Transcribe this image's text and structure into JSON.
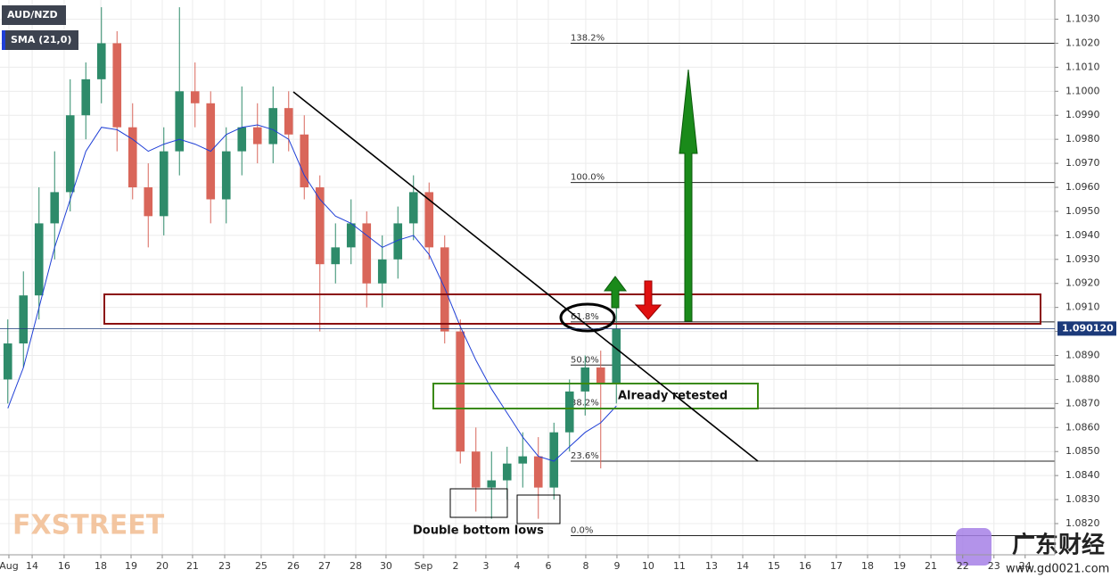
{
  "chart_data": {
    "type": "candlestick",
    "title": "AUD/NZD",
    "ohlc_colors": {
      "up": "#2e8b6a",
      "down": "#d9665a"
    },
    "open": [
      1.088,
      1.0895,
      1.0915,
      1.0945,
      1.0958,
      1.099,
      1.1005,
      1.102,
      1.0985,
      1.096,
      1.0948,
      1.0975,
      1.1,
      1.0995,
      1.0955,
      1.0975,
      1.0985,
      1.0978,
      1.0993,
      1.0982,
      1.096,
      1.0928,
      1.0935,
      1.0945,
      1.092,
      1.093,
      1.0945,
      1.0958,
      1.0935,
      1.09,
      1.085,
      1.0835,
      1.0838,
      1.0845,
      1.0848,
      1.0835,
      1.0858,
      1.0875,
      1.0885,
      1.0878
    ],
    "high": [
      1.0905,
      1.0925,
      1.096,
      1.0975,
      1.1005,
      1.1012,
      1.1035,
      1.1025,
      1.0995,
      1.097,
      1.0985,
      1.1035,
      1.1012,
      1.1,
      1.0985,
      1.1002,
      1.0995,
      1.1002,
      1.1,
      1.099,
      1.0965,
      1.0945,
      1.0955,
      1.095,
      1.094,
      1.0952,
      1.0965,
      1.0962,
      1.094,
      1.0905,
      1.086,
      1.085,
      1.0852,
      1.0858,
      1.0856,
      1.0862,
      1.088,
      1.089,
      1.0892,
      1.092
    ],
    "low": [
      1.087,
      1.0885,
      1.0905,
      1.093,
      1.095,
      1.098,
      1.0995,
      1.0975,
      1.0955,
      1.0935,
      1.094,
      1.0965,
      1.0985,
      1.0945,
      1.0945,
      1.0965,
      1.097,
      1.097,
      1.0975,
      1.0955,
      1.09,
      1.092,
      1.0928,
      1.091,
      1.091,
      1.0922,
      1.0938,
      1.093,
      1.0895,
      1.0845,
      1.0825,
      1.0822,
      1.083,
      1.0835,
      1.0822,
      1.083,
      1.085,
      1.0865,
      1.0843,
      1.087
    ],
    "close": [
      1.0895,
      1.0915,
      1.0945,
      1.0958,
      1.099,
      1.1005,
      1.102,
      1.0985,
      1.096,
      1.0948,
      1.0975,
      1.1,
      1.0995,
      1.0955,
      1.0975,
      1.0985,
      1.0978,
      1.0993,
      1.0982,
      1.096,
      1.0928,
      1.0935,
      1.0945,
      1.092,
      1.093,
      1.0945,
      1.0958,
      1.0935,
      1.09,
      1.085,
      1.0835,
      1.0838,
      1.0845,
      1.0848,
      1.0835,
      1.0858,
      1.0875,
      1.0885,
      1.0878,
      1.0901
    ],
    "sma": {
      "name": "SMA (21,0)",
      "color": "#1f3fd6",
      "values": [
        1.0868,
        1.0885,
        1.091,
        1.0935,
        1.0955,
        1.0975,
        1.0985,
        1.0984,
        1.098,
        1.0975,
        1.0978,
        1.098,
        1.0978,
        1.0975,
        1.0982,
        1.0985,
        1.0986,
        1.0984,
        1.098,
        1.0965,
        1.0955,
        1.0948,
        1.0945,
        1.094,
        1.0935,
        1.0938,
        1.094,
        1.0932,
        1.0918,
        1.0902,
        1.0888,
        1.0876,
        1.0866,
        1.0856,
        1.0848,
        1.0846,
        1.0852,
        1.0858,
        1.0862,
        1.0869
      ]
    },
    "xlim": [
      0,
      67.6
    ],
    "xticks": [
      {
        "value": 0.57,
        "label": "Aug"
      },
      {
        "value": 2.06,
        "label": "14"
      },
      {
        "value": 4.11,
        "label": "16"
      },
      {
        "value": 6.46,
        "label": "18"
      },
      {
        "value": 8.4,
        "label": "19"
      },
      {
        "value": 10.4,
        "label": "20"
      },
      {
        "value": 12.34,
        "label": "21"
      },
      {
        "value": 14.4,
        "label": "23"
      },
      {
        "value": 16.74,
        "label": "25"
      },
      {
        "value": 18.8,
        "label": "26"
      },
      {
        "value": 20.8,
        "label": "27"
      },
      {
        "value": 22.8,
        "label": "28"
      },
      {
        "value": 24.74,
        "label": "30"
      },
      {
        "value": 27.14,
        "label": "Sep"
      },
      {
        "value": 29.2,
        "label": "2"
      },
      {
        "value": 31.14,
        "label": "3"
      },
      {
        "value": 33.14,
        "label": "4"
      },
      {
        "value": 35.14,
        "label": "6"
      },
      {
        "value": 37.54,
        "label": "8"
      },
      {
        "value": 39.54,
        "label": "9"
      },
      {
        "value": 41.54,
        "label": "10"
      },
      {
        "value": 43.54,
        "label": "11"
      },
      {
        "value": 45.6,
        "label": "13"
      },
      {
        "value": 47.6,
        "label": "14"
      },
      {
        "value": 49.6,
        "label": "15"
      },
      {
        "value": 51.6,
        "label": "16"
      },
      {
        "value": 53.6,
        "label": "17"
      },
      {
        "value": 55.6,
        "label": "18"
      },
      {
        "value": 57.66,
        "label": "19"
      },
      {
        "value": 59.66,
        "label": "21"
      },
      {
        "value": 61.7,
        "label": "22"
      },
      {
        "value": 63.7,
        "label": "23"
      },
      {
        "value": 65.7,
        "label": "24"
      }
    ],
    "ylim": [
      1.0807,
      1.1038
    ],
    "yticks": [
      {
        "value": 1.082,
        "label": "1.0820"
      },
      {
        "value": 1.083,
        "label": "1.0830"
      },
      {
        "value": 1.084,
        "label": "1.0840"
      },
      {
        "value": 1.085,
        "label": "1.0850"
      },
      {
        "value": 1.086,
        "label": "1.0860"
      },
      {
        "value": 1.087,
        "label": "1.0870"
      },
      {
        "value": 1.088,
        "label": "1.0880"
      },
      {
        "value": 1.089,
        "label": "1.0890"
      },
      {
        "value": 1.09,
        "label": "1.0900"
      },
      {
        "value": 1.091,
        "label": "1.0910"
      },
      {
        "value": 1.092,
        "label": "1.0920"
      },
      {
        "value": 1.093,
        "label": "1.0930"
      },
      {
        "value": 1.094,
        "label": "1.0940"
      },
      {
        "value": 1.095,
        "label": "1.0950"
      },
      {
        "value": 1.096,
        "label": "1.0960"
      },
      {
        "value": 1.097,
        "label": "1.0970"
      },
      {
        "value": 1.098,
        "label": "1.0980"
      },
      {
        "value": 1.099,
        "label": "1.0990"
      },
      {
        "value": 1.1,
        "label": "1.1000"
      },
      {
        "value": 1.101,
        "label": "1.1010"
      },
      {
        "value": 1.102,
        "label": "1.1020"
      },
      {
        "value": 1.103,
        "label": "1.1030"
      }
    ],
    "grid": true,
    "last_price": {
      "value": 1.09012,
      "label": "1.090120"
    },
    "fib_levels": [
      {
        "label": "138.2%",
        "value": 1.102
      },
      {
        "label": "100.0%",
        "value": 1.0962
      },
      {
        "label": "61.8%",
        "value": 1.0904
      },
      {
        "label": "50.0%",
        "value": 1.0886
      },
      {
        "label": "38.2%",
        "value": 1.0868
      },
      {
        "label": "23.6%",
        "value": 1.0846
      },
      {
        "label": "0.0%",
        "value": 1.0815
      }
    ],
    "annotations": [
      "Already retested",
      "Double bottom lows"
    ],
    "watermarks": [
      "FXSTREET",
      "广东财经",
      "www.gd0021.com"
    ]
  }
}
